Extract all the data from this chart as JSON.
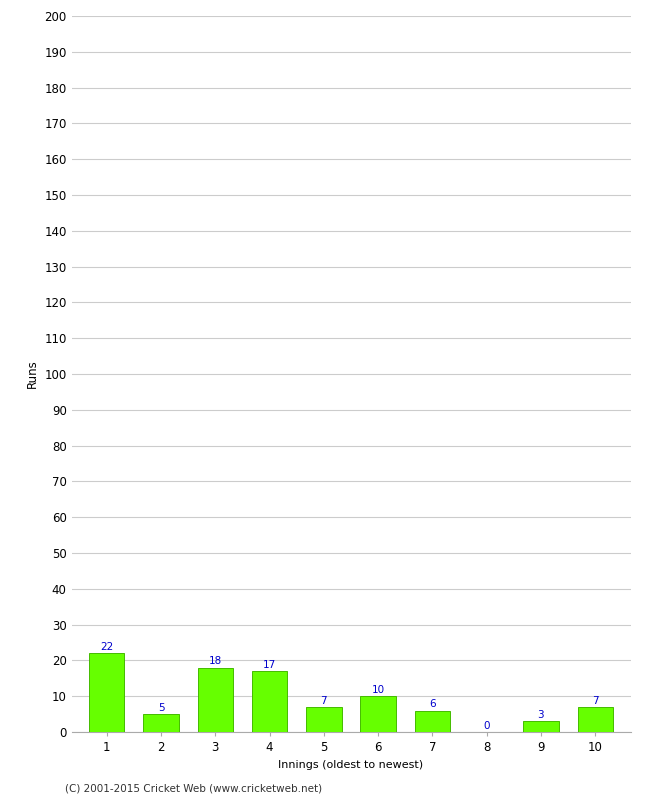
{
  "innings": [
    1,
    2,
    3,
    4,
    5,
    6,
    7,
    8,
    9,
    10
  ],
  "runs": [
    22,
    5,
    18,
    17,
    7,
    10,
    6,
    0,
    3,
    7
  ],
  "bar_color": "#66ff00",
  "bar_edge_color": "#44bb00",
  "label_color": "#0000cc",
  "ylabel": "Runs",
  "xlabel": "Innings (oldest to newest)",
  "footer": "(C) 2001-2015 Cricket Web (www.cricketweb.net)",
  "ylim": [
    0,
    200
  ],
  "yticks": [
    0,
    10,
    20,
    30,
    40,
    50,
    60,
    70,
    80,
    90,
    100,
    110,
    120,
    130,
    140,
    150,
    160,
    170,
    180,
    190,
    200
  ],
  "background_color": "#ffffff",
  "grid_color": "#cccccc",
  "label_fontsize": 7.5,
  "axis_fontsize": 8.5,
  "footer_fontsize": 7.5,
  "xlabel_fontsize": 8.0
}
